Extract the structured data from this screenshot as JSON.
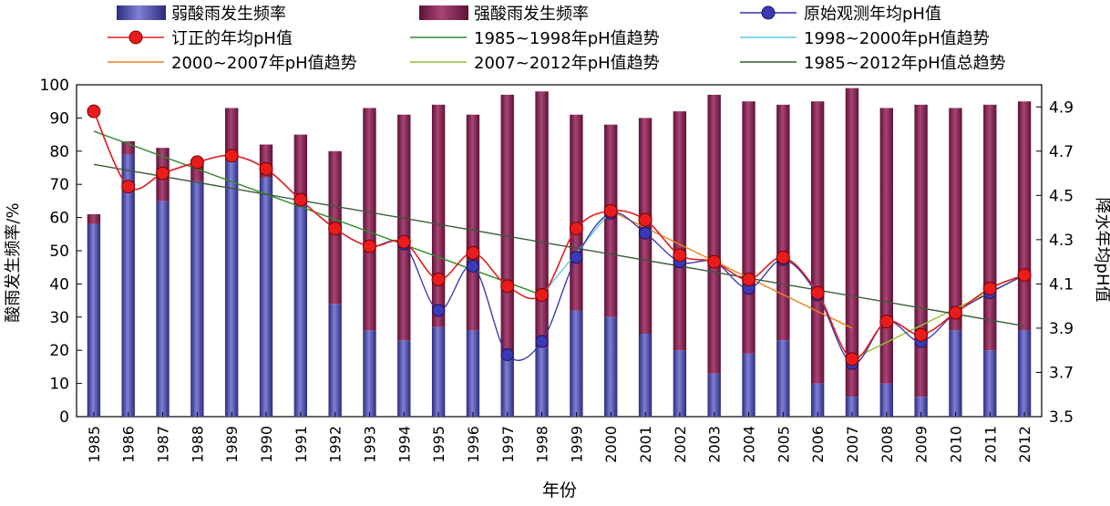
{
  "chart_data": {
    "type": "bar",
    "xlabel": "年份",
    "ylabel": "酸雨发生频率/%",
    "y2label": "降水年均pH值",
    "ylim": [
      0,
      100
    ],
    "y2lim": [
      3.5,
      5.0
    ],
    "yticks": [
      0,
      10,
      20,
      30,
      40,
      50,
      60,
      70,
      80,
      90,
      100
    ],
    "y2ticks": [
      "3.5",
      "3.7",
      "3.9",
      "4.1",
      "4.3",
      "4.5",
      "4.7",
      "4.9"
    ],
    "categories": [
      "1985",
      "1986",
      "1987",
      "1988",
      "1989",
      "1990",
      "1991",
      "1992",
      "1993",
      "1994",
      "1995",
      "1996",
      "1997",
      "1998",
      "1999",
      "2000",
      "2001",
      "2002",
      "2003",
      "2004",
      "2005",
      "2006",
      "2007",
      "2008",
      "2009",
      "2010",
      "2011",
      "2012"
    ],
    "series": [
      {
        "name": "弱酸雨发生频率",
        "kind": "bar-stack",
        "color": "#4a4aa8",
        "values": [
          58,
          79,
          65,
          71,
          77,
          72,
          64,
          34,
          26,
          23,
          27,
          26,
          19,
          21,
          32,
          30,
          25,
          20,
          13,
          19,
          23,
          10,
          6,
          10,
          6,
          26,
          20,
          26
        ]
      },
      {
        "name": "强酸雨发生频率",
        "kind": "bar-stack",
        "color": "#8b2252",
        "values": [
          3,
          4,
          16,
          6,
          16,
          10,
          21,
          46,
          67,
          68,
          67,
          65,
          78,
          77,
          59,
          58,
          65,
          72,
          84,
          76,
          71,
          85,
          93,
          83,
          88,
          67,
          74,
          69
        ]
      },
      {
        "name": "原始观测年均pH值",
        "kind": "line-y2",
        "color": "#3030b0",
        "values": [
          4.88,
          4.54,
          4.6,
          4.65,
          4.68,
          4.62,
          4.48,
          4.35,
          4.27,
          4.28,
          3.98,
          4.18,
          3.78,
          3.84,
          4.22,
          4.42,
          4.33,
          4.2,
          4.2,
          4.08,
          4.21,
          4.05,
          3.74,
          3.93,
          3.84,
          3.97,
          4.06,
          4.14
        ]
      },
      {
        "name": "订正的年均pH值",
        "kind": "line-y2",
        "color": "#e02020",
        "values": [
          4.88,
          4.54,
          4.6,
          4.65,
          4.68,
          4.62,
          4.48,
          4.35,
          4.27,
          4.29,
          4.12,
          4.24,
          4.09,
          4.05,
          4.35,
          4.43,
          4.39,
          4.23,
          4.2,
          4.12,
          4.22,
          4.06,
          3.76,
          3.93,
          3.87,
          3.97,
          4.08,
          4.14
        ]
      },
      {
        "name": "1985~1998年pH值趋势",
        "kind": "trend-y2",
        "color": "#2e8b2e",
        "x": [
          "1985",
          "1998"
        ],
        "values": [
          4.79,
          4.05
        ]
      },
      {
        "name": "1998~2000年pH值趋势",
        "kind": "trend-y2",
        "color": "#60c8e8",
        "x": [
          "1998",
          "2000"
        ],
        "values": [
          4.05,
          4.43
        ]
      },
      {
        "name": "2000~2007年pH值趋势",
        "kind": "trend-y2",
        "color": "#f08020",
        "x": [
          "2000",
          "2007"
        ],
        "values": [
          4.43,
          3.9
        ]
      },
      {
        "name": "2007~2012年pH值趋势",
        "kind": "trend-y2",
        "color": "#90c030",
        "x": [
          "2007",
          "2012"
        ],
        "values": [
          3.76,
          4.14
        ]
      },
      {
        "name": "1985~2012年pH值总趋势",
        "kind": "trend-y2",
        "color": "#3a5a3a",
        "x": [
          "1985",
          "2012"
        ],
        "values": [
          4.64,
          3.91
        ]
      }
    ],
    "legend_position": "top",
    "grid": false
  }
}
